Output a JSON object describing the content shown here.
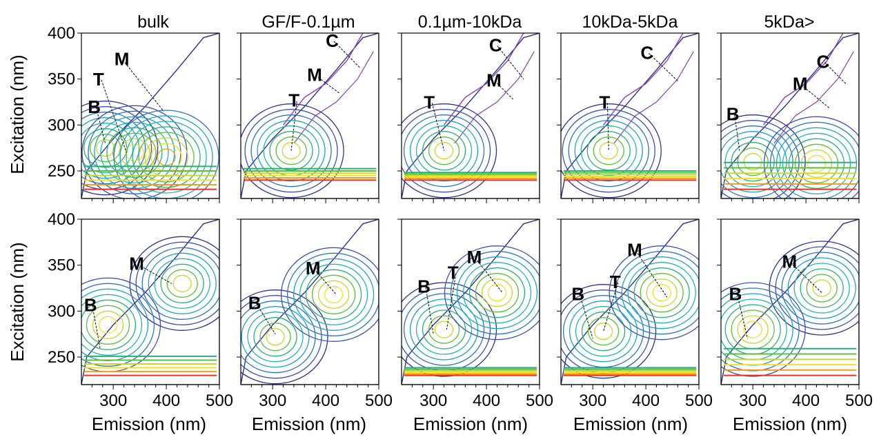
{
  "chart_data": {
    "type": "contour",
    "column_titles": [
      "bulk",
      "GF/F-0.1µm",
      "0.1µm-10kDa",
      "10kDa-5kDa",
      "5kDa>"
    ],
    "ylabel": "Excitation (nm)",
    "xlabel": "Emission (nm)",
    "xlim": [
      240,
      500
    ],
    "ylim": [
      220,
      400
    ],
    "x_ticks": [
      300,
      400,
      500
    ],
    "y_ticks": [
      250,
      300,
      350,
      400
    ],
    "contour_colors": [
      "#2b2f8f",
      "#3b4fb0",
      "#2a73c0",
      "#1ea0c8",
      "#22b6b0",
      "#27b074",
      "#5cbf3a",
      "#c8d62a",
      "#f3e11f",
      "#f29b1c",
      "#e8321e"
    ],
    "upper_color": "#8a3fb0",
    "rows": [
      [
        {
          "peaks": [
            {
              "label": "M",
              "text_at": [
                302,
                365
              ],
              "point": [
                395,
                315
              ]
            },
            {
              "label": "T",
              "text_at": [
                262,
                343
              ],
              "point": [
                325,
                270
              ]
            },
            {
              "label": "B",
              "text_at": [
                252,
                313
              ],
              "point": [
                285,
                280
              ]
            }
          ],
          "centers": [
            [
              285,
              275
            ],
            [
              340,
              270
            ],
            [
              400,
              265
            ]
          ],
          "upper": false,
          "cut": [
            230,
            260
          ]
        },
        {
          "peaks": [
            {
              "label": "C",
              "text_at": [
                400,
                385
              ],
              "point": [
                465,
                362
              ]
            },
            {
              "label": "M",
              "text_at": [
                365,
                348
              ],
              "point": [
                425,
                335
              ]
            },
            {
              "label": "T",
              "text_at": [
                330,
                320
              ],
              "point": [
                335,
                272
              ]
            }
          ],
          "centers": [
            [
              335,
              272
            ]
          ],
          "upper": true,
          "cut": [
            240,
            255
          ]
        },
        {
          "peaks": [
            {
              "label": "C",
              "text_at": [
                405,
                380
              ],
              "point": [
                470,
                350
              ]
            },
            {
              "label": "M",
              "text_at": [
                400,
                342
              ],
              "point": [
                450,
                328
              ]
            },
            {
              "label": "T",
              "text_at": [
                282,
                318
              ],
              "point": [
                320,
                272
              ]
            }
          ],
          "centers": [
            [
              320,
              272
            ]
          ],
          "upper": true,
          "cut": [
            240,
            250
          ]
        },
        {
          "peaks": [
            {
              "label": "C",
              "text_at": [
                390,
                372
              ],
              "point": [
                460,
                348
              ]
            },
            {
              "label": "T",
              "text_at": [
                312,
                318
              ],
              "point": [
                330,
                272
              ]
            }
          ],
          "centers": [
            [
              330,
              272
            ]
          ],
          "upper": true,
          "cut": [
            240,
            252
          ]
        },
        {
          "peaks": [
            {
              "label": "C",
              "text_at": [
                420,
                362
              ],
              "point": [
                475,
                345
              ]
            },
            {
              "label": "M",
              "text_at": [
                375,
                338
              ],
              "point": [
                445,
                318
              ]
            },
            {
              "label": "B",
              "text_at": [
                250,
                305
              ],
              "point": [
                275,
                272
              ]
            }
          ],
          "centers": [
            [
              300,
              260
            ],
            [
              420,
              258
            ]
          ],
          "upper": true,
          "cut": [
            230,
            265
          ]
        }
      ],
      [
        {
          "peaks": [
            {
              "label": "M",
              "text_at": [
                330,
                345
              ],
              "point": [
                410,
                330
              ]
            },
            {
              "label": "B",
              "text_at": [
                245,
                300
              ],
              "point": [
                275,
                260
              ]
            }
          ],
          "centers": [
            [
              430,
              330
            ],
            [
              290,
              285
            ]
          ],
          "upper": false,
          "cut": [
            230,
            255
          ]
        },
        {
          "peaks": [
            {
              "label": "M",
              "text_at": [
                362,
                340
              ],
              "point": [
                420,
                318
              ]
            },
            {
              "label": "B",
              "text_at": [
                254,
                302
              ],
              "point": [
                305,
                275
              ]
            }
          ],
          "centers": [
            [
              305,
              272
            ],
            [
              415,
              318
            ]
          ],
          "upper": false,
          "cut": [
            0,
            0
          ]
        },
        {
          "peaks": [
            {
              "label": "M",
              "text_at": [
                363,
                352
              ],
              "point": [
                430,
                320
              ]
            },
            {
              "label": "T",
              "text_at": [
                327,
                335
              ],
              "point": [
                325,
                280
              ]
            },
            {
              "label": "B",
              "text_at": [
                270,
                320
              ],
              "point": [
                300,
                275
              ]
            }
          ],
          "centers": [
            [
              320,
              280
            ],
            [
              420,
              320
            ]
          ],
          "upper": false,
          "cut": [
            230,
            240
          ]
        },
        {
          "peaks": [
            {
              "label": "M",
              "text_at": [
                365,
                360
              ],
              "point": [
                440,
                315
              ]
            },
            {
              "label": "T",
              "text_at": [
                332,
                325
              ],
              "point": [
                320,
                278
              ]
            },
            {
              "label": "B",
              "text_at": [
                260,
                312
              ],
              "point": [
                300,
                270
              ]
            }
          ],
          "centers": [
            [
              320,
              278
            ],
            [
              430,
              320
            ]
          ],
          "upper": false,
          "cut": [
            230,
            240
          ]
        },
        {
          "peaks": [
            {
              "label": "M",
              "text_at": [
                355,
                347
              ],
              "point": [
                430,
                320
              ]
            },
            {
              "label": "B",
              "text_at": [
                255,
                312
              ],
              "point": [
                290,
                270
              ]
            }
          ],
          "centers": [
            [
              430,
              325
            ],
            [
              300,
              280
            ]
          ],
          "upper": false,
          "cut": [
            230,
            265
          ]
        }
      ]
    ]
  }
}
